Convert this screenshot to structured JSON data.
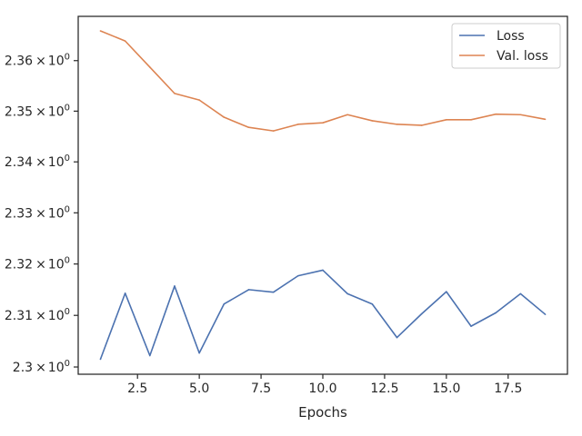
{
  "chart_data": {
    "type": "line",
    "title": "",
    "xlabel": "Epochs",
    "ylabel": "",
    "xlim": [
      0.1,
      19.9
    ],
    "ylim": [
      2.2986,
      2.3688
    ],
    "yscale": "log",
    "grid": false,
    "legend_position": "top-right",
    "x_ticks": [
      2.5,
      5.0,
      7.5,
      10.0,
      12.5,
      15.0,
      17.5
    ],
    "x_tick_labels": [
      "2.5",
      "5.0",
      "7.5",
      "10.0",
      "12.5",
      "15.0",
      "17.5"
    ],
    "y_ticks": [
      2.3,
      2.31,
      2.32,
      2.33,
      2.34,
      2.35,
      2.36
    ],
    "y_tick_labels": [
      {
        "mantissa": "2.3",
        "base": "10",
        "exp": "0"
      },
      {
        "mantissa": "2.31",
        "base": "10",
        "exp": "0"
      },
      {
        "mantissa": "2.32",
        "base": "10",
        "exp": "0"
      },
      {
        "mantissa": "2.33",
        "base": "10",
        "exp": "0"
      },
      {
        "mantissa": "2.34",
        "base": "10",
        "exp": "0"
      },
      {
        "mantissa": "2.35",
        "base": "10",
        "exp": "0"
      },
      {
        "mantissa": "2.36",
        "base": "10",
        "exp": "0"
      }
    ],
    "x": [
      1,
      2,
      3,
      4,
      5,
      6,
      7,
      8,
      9,
      10,
      11,
      12,
      13,
      14,
      15,
      16,
      17,
      18,
      19
    ],
    "series": [
      {
        "name": "Loss",
        "color": "#4c72b0",
        "values": [
          2.3015,
          2.3143,
          2.3022,
          2.3157,
          2.3027,
          2.3122,
          2.315,
          2.3145,
          2.3177,
          2.3188,
          2.3142,
          2.3122,
          2.3057,
          2.3103,
          2.3146,
          2.3079,
          2.3105,
          2.3142,
          2.3102
        ]
      },
      {
        "name": "Val. loss",
        "color": "#dd8452",
        "values": [
          2.3659,
          2.3639,
          2.3587,
          2.3535,
          2.3522,
          2.3488,
          2.3468,
          2.3461,
          2.3474,
          2.3477,
          2.3493,
          2.3481,
          2.3474,
          2.3472,
          2.3483,
          2.3483,
          2.3494,
          2.3493,
          2.3484
        ]
      }
    ]
  }
}
